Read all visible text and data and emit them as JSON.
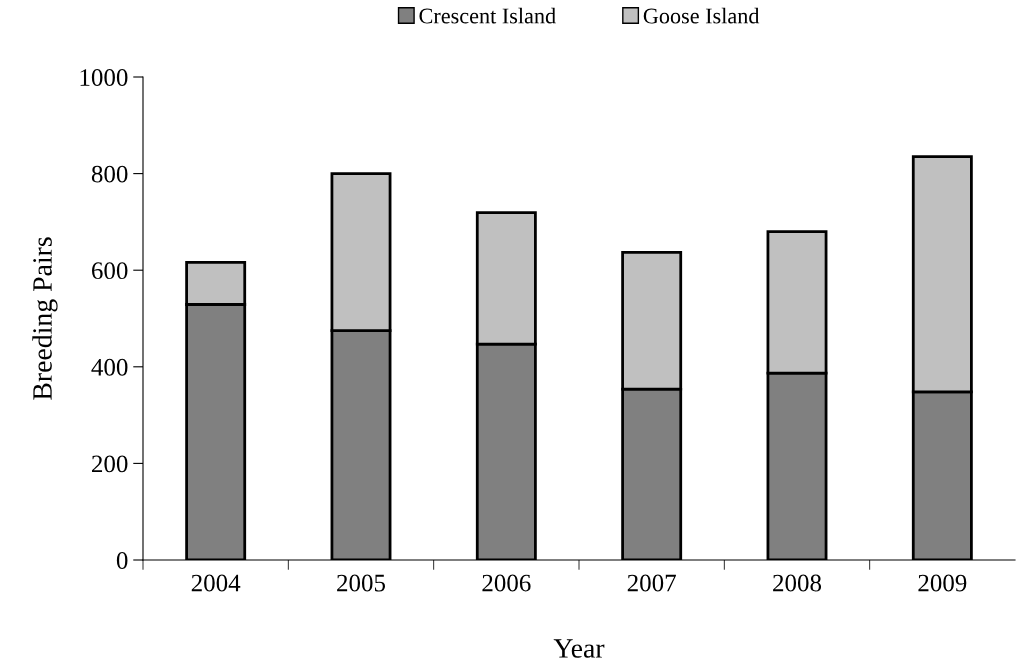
{
  "chart_data": {
    "type": "bar",
    "stacked": true,
    "xlabel": "Year",
    "ylabel": "Breeding Pairs",
    "categories": [
      "2004",
      "2005",
      "2006",
      "2007",
      "2008",
      "2009"
    ],
    "series": [
      {
        "name": "Crescent Island",
        "color": "#808080",
        "values": [
          529,
          475,
          447,
          354,
          387,
          348
        ]
      },
      {
        "name": "Goose Island",
        "color": "#c0c0c0",
        "values": [
          87,
          325,
          272,
          283,
          293,
          487
        ]
      }
    ],
    "ylim": [
      0,
      1000
    ],
    "yticks": [
      0,
      200,
      400,
      600,
      800,
      1000
    ],
    "grid": false,
    "legend": "top"
  }
}
